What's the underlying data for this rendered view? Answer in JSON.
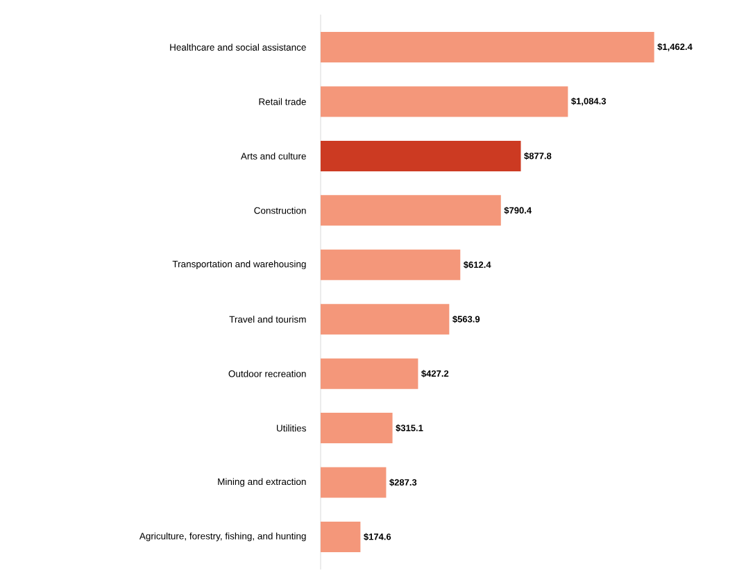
{
  "chart_data": {
    "type": "bar",
    "orientation": "horizontal",
    "categories": [
      "Healthcare and social assistance",
      "Retail trade",
      "Arts and culture",
      "Construction",
      "Transportation and warehousing",
      "Travel and tourism",
      "Outdoor recreation",
      "Utilities",
      "Mining and extraction",
      "Agriculture, forestry, fishing, and hunting"
    ],
    "values": [
      1462.4,
      1084.3,
      877.8,
      790.4,
      612.4,
      563.9,
      427.2,
      315.1,
      287.3,
      174.6
    ],
    "colors": [
      "#f4977a",
      "#f4977a",
      "#cc3a22",
      "#f4977a",
      "#f4977a",
      "#f4977a",
      "#f4977a",
      "#f4977a",
      "#f4977a",
      "#f4977a"
    ],
    "value_labels": [
      "$1,462.4",
      "$1,084.3",
      "$877.8",
      "$790.4",
      "$612.4",
      "$563.9",
      "$427.2",
      "$315.1",
      "$287.3",
      "$174.6"
    ]
  }
}
